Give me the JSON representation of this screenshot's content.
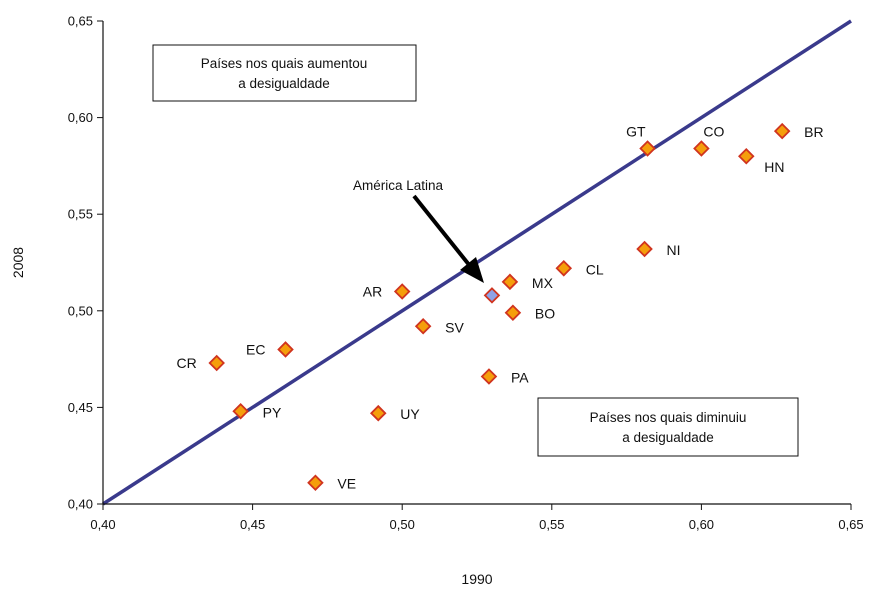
{
  "chart_data": {
    "type": "scatter",
    "xlabel": "1990",
    "ylabel": "2008",
    "xlim": [
      0.4,
      0.65
    ],
    "ylim": [
      0.4,
      0.65
    ],
    "xticks": [
      0.4,
      0.45,
      0.5,
      0.55,
      0.6,
      0.65
    ],
    "yticks": [
      0.4,
      0.45,
      0.5,
      0.55,
      0.6,
      0.65
    ],
    "xtick_labels": [
      "0,40",
      "0,45",
      "0,50",
      "0,55",
      "0,60",
      "0,65"
    ],
    "ytick_labels": [
      "0,40",
      "0,45",
      "0,50",
      "0,55",
      "0,60",
      "0,65"
    ],
    "grid": false,
    "reference_line": {
      "from": [
        0.4,
        0.4
      ],
      "to": [
        0.65,
        0.65
      ],
      "color": "#3a3a8c"
    },
    "points": [
      {
        "label": "CR",
        "x": 0.438,
        "y": 0.473,
        "color": "#f59e0b",
        "label_side": "left"
      },
      {
        "label": "EC",
        "x": 0.461,
        "y": 0.48,
        "color": "#f59e0b",
        "label_side": "left"
      },
      {
        "label": "PY",
        "x": 0.446,
        "y": 0.448,
        "color": "#f59e0b",
        "label_side": "right"
      },
      {
        "label": "VE",
        "x": 0.471,
        "y": 0.411,
        "color": "#f59e0b",
        "label_side": "right"
      },
      {
        "label": "UY",
        "x": 0.492,
        "y": 0.447,
        "color": "#f59e0b",
        "label_side": "right"
      },
      {
        "label": "AR",
        "x": 0.5,
        "y": 0.51,
        "color": "#f59e0b",
        "label_side": "left"
      },
      {
        "label": "SV",
        "x": 0.507,
        "y": 0.492,
        "color": "#f59e0b",
        "label_side": "right"
      },
      {
        "label": "PA",
        "x": 0.529,
        "y": 0.466,
        "color": "#f59e0b",
        "label_side": "right"
      },
      {
        "label": "MX",
        "x": 0.536,
        "y": 0.515,
        "color": "#f59e0b",
        "label_side": "right"
      },
      {
        "label": "BO",
        "x": 0.537,
        "y": 0.499,
        "color": "#f59e0b",
        "label_side": "right"
      },
      {
        "label": "CL",
        "x": 0.554,
        "y": 0.522,
        "color": "#f59e0b",
        "label_side": "right"
      },
      {
        "label": "NI",
        "x": 0.581,
        "y": 0.532,
        "color": "#f59e0b",
        "label_side": "right"
      },
      {
        "label": "GT",
        "x": 0.582,
        "y": 0.584,
        "color": "#f59e0b",
        "label_side": "above-left"
      },
      {
        "label": "CO",
        "x": 0.6,
        "y": 0.584,
        "color": "#f59e0b",
        "label_side": "above-right"
      },
      {
        "label": "HN",
        "x": 0.615,
        "y": 0.58,
        "color": "#f59e0b",
        "label_side": "below-right"
      },
      {
        "label": "BR",
        "x": 0.627,
        "y": 0.593,
        "color": "#f59e0b",
        "label_side": "right"
      },
      {
        "label": "",
        "x": 0.53,
        "y": 0.508,
        "color": "#8ea2e8",
        "label_side": "none"
      }
    ],
    "annotations": {
      "latin_america_label": "América Latina",
      "upper_box_line1": "Países nos quais aumentou",
      "upper_box_line2": "a desigualdade",
      "lower_box_line1": "Países nos quais diminuiu",
      "lower_box_line2": "a desigualdade"
    },
    "colors": {
      "marker_border": "#d0341f",
      "axis": "#111111",
      "diagonal": "#3a3a8c"
    }
  }
}
